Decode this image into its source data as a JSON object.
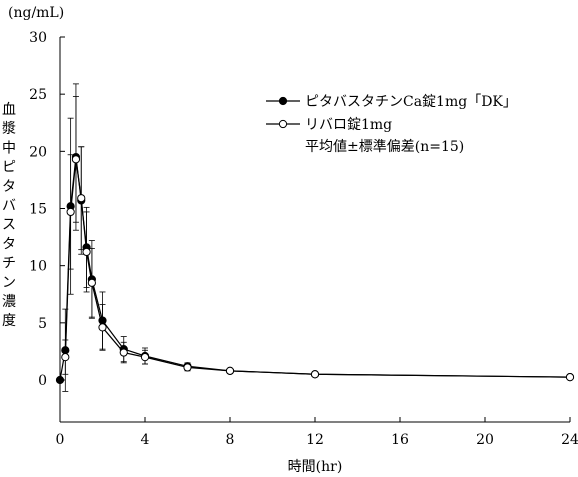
{
  "chart_data": {
    "type": "line",
    "unit_label": "(ng/mL)",
    "ylabel": "血漿中ピタバスタチン濃度",
    "xlabel": "時間(hr)",
    "xlim": [
      0,
      24
    ],
    "ylim": [
      0,
      30
    ],
    "x_ticks": [
      0,
      4,
      8,
      12,
      16,
      20,
      24
    ],
    "y_ticks": [
      0,
      5,
      10,
      15,
      20,
      25,
      30
    ],
    "legend_note": "平均値±標準偏差(n=15)",
    "legend_position": "top-right",
    "series": [
      {
        "name": "ピタバスタチンCa錠1mg「DK」",
        "marker": "filled-circle",
        "x": [
          0,
          0.25,
          0.5,
          0.75,
          1,
          1.25,
          1.5,
          2,
          3,
          4,
          6,
          8,
          12,
          24
        ],
        "y": [
          0,
          2.6,
          15.2,
          19.5,
          15.7,
          11.6,
          8.8,
          5.2,
          2.7,
          2.1,
          1.2,
          0.8,
          0.5,
          0.25
        ],
        "err": [
          0,
          3.6,
          7.7,
          6.4,
          4.7,
          3.5,
          3.4,
          2.5,
          1.1,
          0.7,
          0.3,
          0.2,
          0.15,
          0.1
        ]
      },
      {
        "name": "リバロ錠1mg",
        "marker": "open-circle",
        "x": [
          0.25,
          0.5,
          0.75,
          1,
          1.25,
          1.5,
          2,
          3,
          4,
          6,
          8,
          12,
          24
        ],
        "y": [
          2.0,
          14.7,
          19.3,
          15.9,
          11.2,
          8.5,
          4.6,
          2.4,
          2.0,
          1.1,
          0.8,
          0.5,
          0.25
        ],
        "err": [
          1.5,
          5.0,
          5.5,
          4.5,
          3.5,
          3.0,
          2.0,
          0.9,
          0.6,
          0.3,
          0.2,
          0.15,
          0.1
        ]
      }
    ]
  }
}
